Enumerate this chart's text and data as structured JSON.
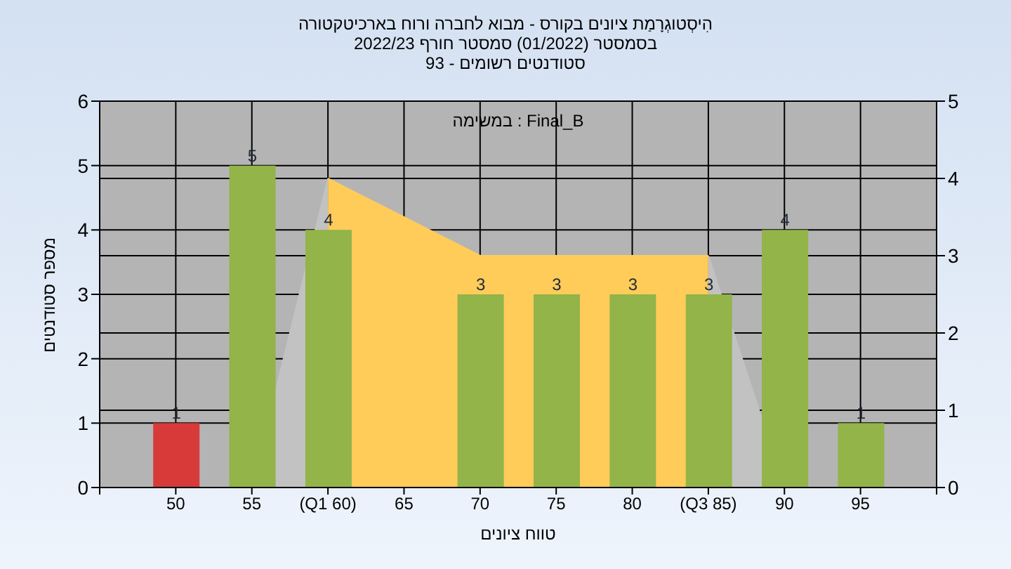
{
  "chart_data": {
    "type": "bar",
    "title": "הִיסְטוגְרָמַת ציונים בקורס - מבוא לחברה ורוח בארכיטקטורה",
    "subtitle": "בסמסטר (01/2022) סמסטר חורף 2022/23\nסטודנטים רשומים - 93",
    "xlabel": "טווח ציונים",
    "ylabel": "מספר סטודנטים",
    "annotations": [
      "במשימה : Final_B"
    ],
    "categories": [
      "50",
      "55",
      "(Q1 60)",
      "65",
      "70",
      "75",
      "80",
      "(Q3 85)",
      "90",
      "95"
    ],
    "series": [
      {
        "type": "area",
        "axis": "y2",
        "color": "#c2c2c2",
        "values": [
          null,
          0,
          4,
          null,
          null,
          null,
          null,
          3,
          0,
          null
        ]
      },
      {
        "type": "area",
        "axis": "y2",
        "color": "#ffcc5a",
        "values": [
          null,
          null,
          4,
          3.5,
          3,
          3,
          3,
          3,
          null,
          null
        ]
      },
      {
        "colors": [
          "#d83a3a",
          "#92b449",
          "#92b449",
          "#92b449",
          "#92b449",
          "#92b449",
          "#92b449",
          "#92b449",
          "#92b449",
          "#92b449"
        ],
        "values": [
          1,
          5,
          4,
          null,
          3,
          3,
          3,
          3,
          4,
          1
        ],
        "value_labels": [
          "1",
          "5",
          "4",
          null,
          "3",
          "3",
          "3",
          "3",
          "4",
          "1"
        ]
      }
    ],
    "ylim": [
      0,
      6
    ],
    "yticks": [
      0,
      1,
      2,
      3,
      4,
      5,
      6
    ],
    "y2lim": [
      0,
      5
    ],
    "y2ticks": [
      0,
      1,
      2,
      3,
      4,
      5
    ],
    "grid": true
  }
}
